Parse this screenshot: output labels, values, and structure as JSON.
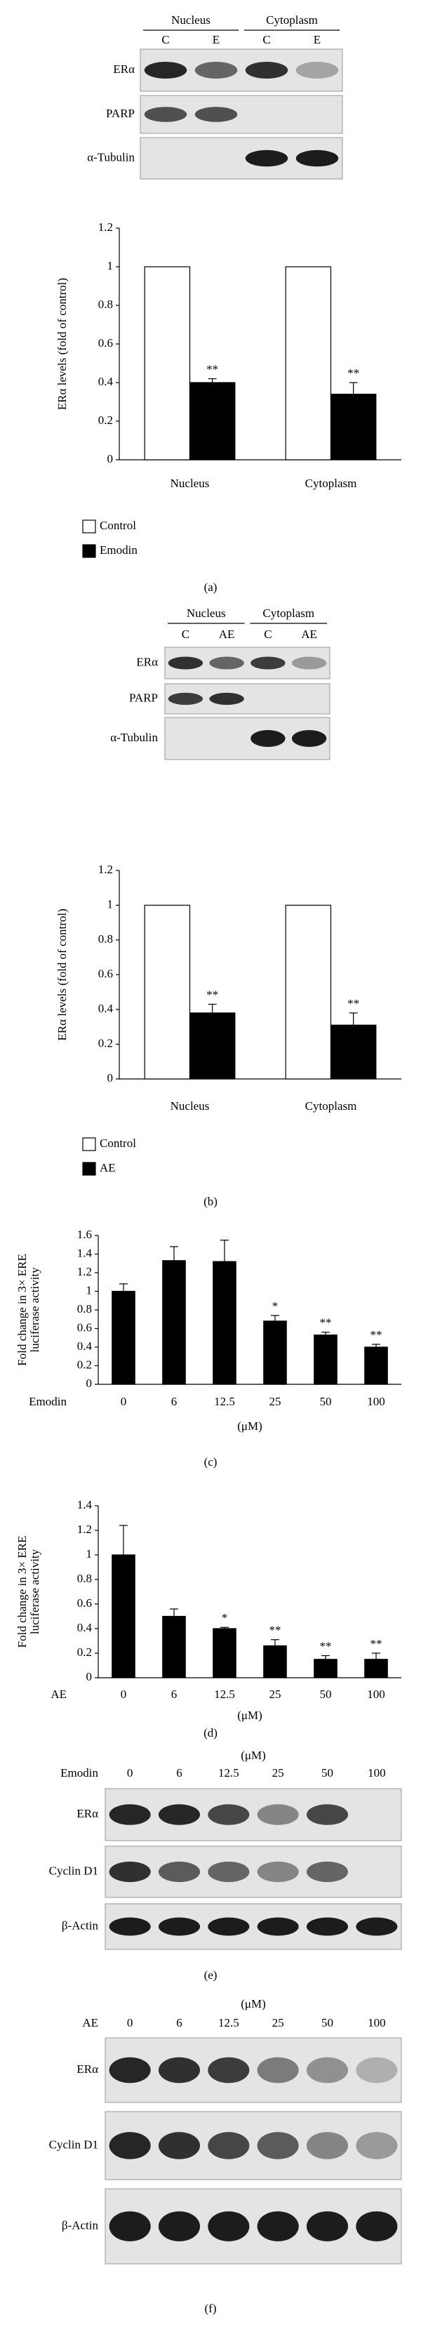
{
  "panel_labels": [
    "(a)",
    "(b)",
    "(c)",
    "(d)",
    "(e)",
    "(f)"
  ],
  "blots": [
    {
      "groups": [
        "Nucleus",
        "Cytoplasm"
      ],
      "lanes": [
        "C",
        "E",
        "C",
        "E"
      ],
      "row_labels": [
        "ERα",
        "PARP",
        "α-Tubulin"
      ]
    },
    {
      "groups": [
        "Nucleus",
        "Cytoplasm"
      ],
      "lanes": [
        "C",
        "AE",
        "C",
        "AE"
      ],
      "row_labels": [
        "ERα",
        "PARP",
        "α-Tubulin"
      ]
    },
    {
      "unit": "(μM)",
      "treatment": "Emodin",
      "lanes": [
        "0",
        "6",
        "12.5",
        "25",
        "50",
        "100"
      ],
      "row_labels": [
        "ERα",
        "Cyclin D1",
        "β-Actin"
      ]
    },
    {
      "unit": "(μM)",
      "treatment": "AE",
      "lanes": [
        "0",
        "6",
        "12.5",
        "25",
        "50",
        "100"
      ],
      "row_labels": [
        "ERα",
        "Cyclin D1",
        "β-Actin"
      ]
    }
  ],
  "chart_data": [
    {
      "type": "bar",
      "ylabel": [
        "ERα levels (fold of control)"
      ],
      "categories": [
        "Nucleus",
        "Cytoplasm"
      ],
      "series": [
        {
          "name": "Control",
          "color": "#ffffff",
          "values": [
            1,
            1
          ]
        },
        {
          "name": "Emodin",
          "color": "#000000",
          "values": [
            0.4,
            0.34
          ],
          "errors": [
            0.02,
            0.06
          ],
          "annotations": [
            "**",
            "**"
          ]
        }
      ],
      "ylim": [
        0,
        1.2
      ],
      "yticks": [
        0,
        0.2,
        0.4,
        0.6,
        0.8,
        1,
        1.2
      ]
    },
    {
      "type": "bar",
      "ylabel": [
        "ERα levels (fold of control)"
      ],
      "categories": [
        "Nucleus",
        "Cytoplasm"
      ],
      "series": [
        {
          "name": "Control",
          "color": "#ffffff",
          "values": [
            1,
            1
          ]
        },
        {
          "name": "AE",
          "color": "#000000",
          "values": [
            0.38,
            0.31
          ],
          "errors": [
            0.05,
            0.07
          ],
          "annotations": [
            "**",
            "**"
          ]
        }
      ],
      "ylim": [
        0,
        1.2
      ],
      "yticks": [
        0,
        0.2,
        0.4,
        0.6,
        0.8,
        1,
        1.2
      ]
    },
    {
      "type": "bar",
      "ylabel": [
        "Fold change in 3× ERE",
        "luciferase activity"
      ],
      "xprefix": "Emodin",
      "xunit": "(μM)",
      "categories": [
        "0",
        "6",
        "12.5",
        "25",
        "50",
        "100"
      ],
      "color": "#000000",
      "values": [
        1.0,
        1.33,
        1.32,
        0.68,
        0.53,
        0.4
      ],
      "errors": [
        0.08,
        0.15,
        0.23,
        0.06,
        0.03,
        0.03
      ],
      "annotations": [
        null,
        null,
        null,
        "*",
        "**",
        "**"
      ],
      "ylim": [
        0,
        1.6
      ],
      "yticks": [
        0,
        0.2,
        0.4,
        0.6,
        0.8,
        1,
        1.2,
        1.4,
        1.6
      ]
    },
    {
      "type": "bar",
      "ylabel": [
        "Fold change in 3× ERE",
        "luciferase activity"
      ],
      "xprefix": "AE",
      "xunit": "(μM)",
      "categories": [
        "0",
        "6",
        "12.5",
        "25",
        "50",
        "100"
      ],
      "color": "#000000",
      "values": [
        1.0,
        0.5,
        0.4,
        0.26,
        0.15,
        0.15
      ],
      "errors": [
        0.24,
        0.06,
        0.01,
        0.05,
        0.03,
        0.05
      ],
      "annotations": [
        null,
        null,
        "*",
        "**",
        "**",
        "**"
      ],
      "ylim": [
        0,
        1.4
      ],
      "yticks": [
        0,
        0.2,
        0.4,
        0.6,
        0.8,
        1,
        1.2,
        1.4
      ]
    }
  ]
}
